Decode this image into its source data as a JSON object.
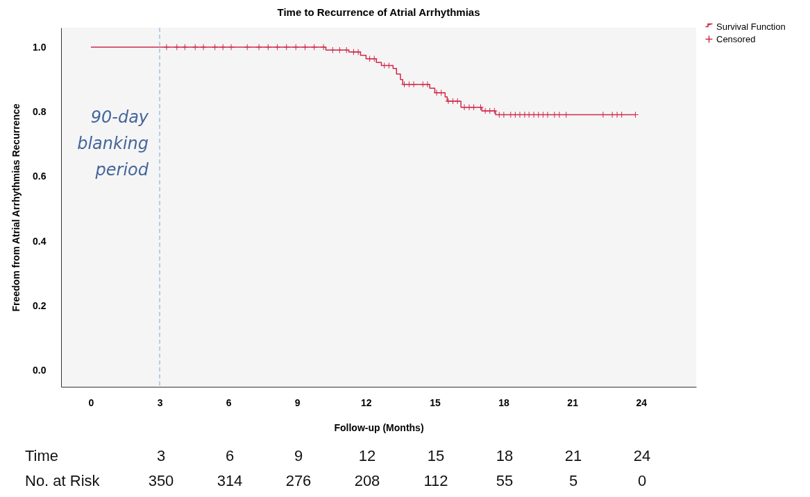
{
  "chart_data": {
    "type": "step",
    "title": "Time to Recurrence of Atrial Arrhythmias",
    "xlabel": "Follow-up (Months)",
    "ylabel": "Freedom from Atrial Arrhythmias Recurrence",
    "xlim": [
      -1.3,
      26.4
    ],
    "xticks": [
      0,
      3,
      6,
      9,
      12,
      15,
      18,
      21,
      24
    ],
    "ylim": [
      -0.05,
      1.06
    ],
    "yticks": [
      {
        "value": 0,
        "label": "0.0"
      },
      0.2,
      0.4,
      0.6,
      0.8,
      {
        "value": 1,
        "label": "1.0"
      }
    ],
    "grid": false,
    "legend": "top right",
    "series": [
      {
        "name": "Survival Function",
        "type": "step",
        "color": "#d0284a",
        "x": [
          0,
          10.25,
          11.25,
          11.76,
          12.0,
          12.45,
          12.67,
          13.18,
          13.33,
          13.5,
          13.6,
          14.78,
          15.0,
          15.45,
          15.54,
          16.14,
          17.05,
          17.65,
          23.75
        ],
        "values": [
          1.0,
          0.991,
          0.985,
          0.975,
          0.964,
          0.953,
          0.943,
          0.934,
          0.917,
          0.9,
          0.885,
          0.873,
          0.859,
          0.846,
          0.833,
          0.814,
          0.803,
          0.791,
          0.791
        ]
      },
      {
        "name": "Censored",
        "type": "scatter",
        "marker": "cross",
        "color": "#d0284a",
        "x": [
          3.3,
          3.75,
          4.1,
          4.55,
          4.91,
          5.41,
          5.76,
          6.12,
          6.82,
          7.33,
          7.73,
          8.13,
          8.53,
          8.94,
          9.34,
          9.74,
          10.15,
          10.55,
          10.85,
          11.15,
          11.46,
          11.66,
          12.16,
          12.36,
          12.8,
          13.0,
          13.67,
          13.88,
          14.08,
          14.48,
          14.68,
          15.08,
          15.28,
          15.59,
          15.79,
          15.99,
          16.29,
          16.5,
          16.7,
          17.0,
          17.2,
          17.4,
          17.6,
          17.81,
          18.01,
          18.31,
          18.51,
          18.71,
          18.92,
          19.11,
          19.32,
          19.52,
          19.72,
          19.92,
          20.22,
          20.43,
          20.73,
          22.34,
          22.74,
          22.95,
          23.15,
          23.75
        ],
        "values": [
          1.0,
          1.0,
          1.0,
          1.0,
          1.0,
          1.0,
          1.0,
          1.0,
          1.0,
          1.0,
          1.0,
          1.0,
          1.0,
          1.0,
          1.0,
          1.0,
          1.0,
          0.991,
          0.991,
          0.991,
          0.985,
          0.985,
          0.964,
          0.964,
          0.943,
          0.943,
          0.885,
          0.885,
          0.885,
          0.885,
          0.885,
          0.859,
          0.859,
          0.833,
          0.833,
          0.833,
          0.814,
          0.814,
          0.814,
          0.814,
          0.803,
          0.803,
          0.803,
          0.791,
          0.791,
          0.791,
          0.791,
          0.791,
          0.791,
          0.791,
          0.791,
          0.791,
          0.791,
          0.791,
          0.791,
          0.791,
          0.791,
          0.791,
          0.791,
          0.791,
          0.791,
          0.791
        ]
      }
    ],
    "ref_lines": [
      {
        "axis": "x",
        "value": 3,
        "label": "90-day blanking period",
        "color": "#9dc3e6",
        "line_style": "dashed"
      }
    ],
    "annotations": [
      "Time",
      "3",
      "6",
      "9",
      "12",
      "15",
      "18",
      "21",
      "24",
      "No. at Risk",
      "350",
      "314",
      "276",
      "208",
      "112",
      "55",
      "5",
      "0"
    ]
  }
}
